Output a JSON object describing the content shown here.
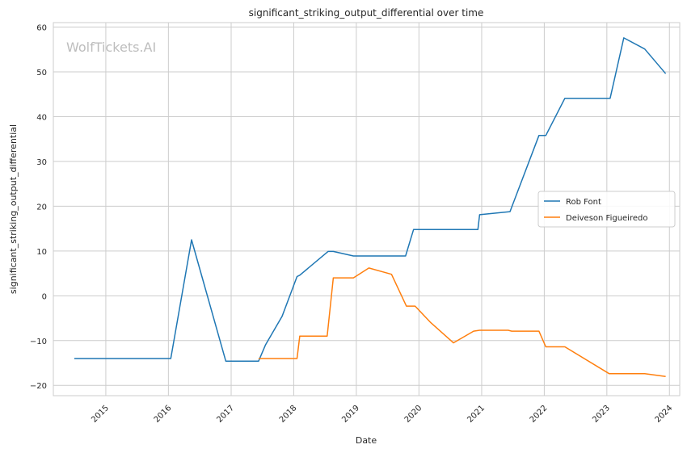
{
  "chart_data": {
    "type": "line",
    "title": "significant_striking_output_differential over time",
    "xlabel": "Date",
    "ylabel": "significant_striking_output_differential",
    "watermark": "WolfTickets.AI",
    "x_ticks": [
      "2015",
      "2016",
      "2017",
      "2018",
      "2019",
      "2020",
      "2021",
      "2022",
      "2023",
      "2024"
    ],
    "y_ticks": [
      -20,
      -10,
      0,
      10,
      20,
      30,
      40,
      50,
      60
    ],
    "xlim": [
      "2014-03-01",
      "2024-03-01"
    ],
    "ylim": [
      -22.3,
      61
    ],
    "grid": true,
    "legend_position": "center-right",
    "series": [
      {
        "name": "Rob Font",
        "color": "#1f77b4",
        "points": [
          [
            "2014-07-01",
            -14.0
          ],
          [
            "2016-01-15",
            -14.0
          ],
          [
            "2016-05-15",
            12.5
          ],
          [
            "2016-12-01",
            -14.6
          ],
          [
            "2017-06-10",
            -14.6
          ],
          [
            "2017-07-20",
            -11.0
          ],
          [
            "2017-10-25",
            -4.6
          ],
          [
            "2018-01-20",
            4.3
          ],
          [
            "2018-02-05",
            4.6
          ],
          [
            "2018-07-20",
            9.9
          ],
          [
            "2018-08-20",
            9.9
          ],
          [
            "2018-12-15",
            8.9
          ],
          [
            "2019-10-15",
            8.9
          ],
          [
            "2019-12-01",
            14.8
          ],
          [
            "2020-12-10",
            14.8
          ],
          [
            "2020-12-20",
            18.1
          ],
          [
            "2021-06-15",
            18.8
          ],
          [
            "2021-12-01",
            35.8
          ],
          [
            "2022-01-10",
            35.8
          ],
          [
            "2022-05-01",
            44.1
          ],
          [
            "2023-01-20",
            44.1
          ],
          [
            "2023-04-10",
            57.6
          ],
          [
            "2023-08-10",
            55.1
          ],
          [
            "2023-12-10",
            49.6
          ]
        ]
      },
      {
        "name": "Deiveson Figueiredo",
        "color": "#ff7f0e",
        "points": [
          [
            "2017-06-10",
            -14.0
          ],
          [
            "2018-01-20",
            -14.0
          ],
          [
            "2018-02-05",
            -9.0
          ],
          [
            "2018-07-15",
            -9.0
          ],
          [
            "2018-08-20",
            4.0
          ],
          [
            "2018-12-15",
            4.0
          ],
          [
            "2019-03-15",
            6.2
          ],
          [
            "2019-07-25",
            4.8
          ],
          [
            "2019-10-20",
            -2.3
          ],
          [
            "2019-12-10",
            -2.3
          ],
          [
            "2020-03-10",
            -6.0
          ],
          [
            "2020-07-20",
            -10.5
          ],
          [
            "2020-11-15",
            -7.9
          ],
          [
            "2020-12-20",
            -7.7
          ],
          [
            "2021-06-05",
            -7.7
          ],
          [
            "2021-06-25",
            -7.9
          ],
          [
            "2021-12-01",
            -7.9
          ],
          [
            "2022-01-10",
            -11.4
          ],
          [
            "2022-05-01",
            -11.4
          ],
          [
            "2023-01-15",
            -17.4
          ],
          [
            "2023-08-10",
            -17.4
          ],
          [
            "2023-12-10",
            -18.0
          ]
        ]
      }
    ]
  }
}
